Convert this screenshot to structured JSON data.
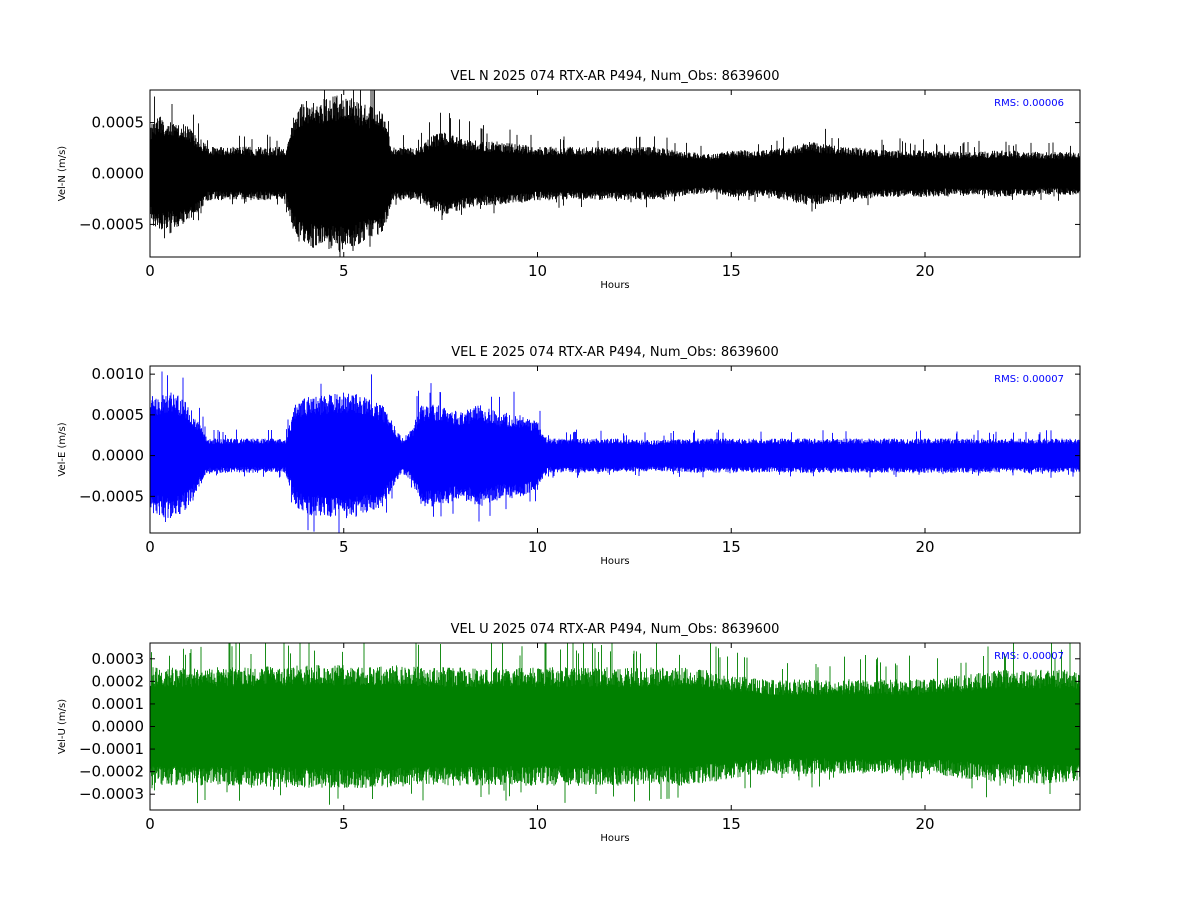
{
  "chart_data": [
    {
      "type": "line",
      "title": "VEL N 2025 074 RTX-AR  P494, Num_Obs: 8639600",
      "xlabel": "Hours",
      "ylabel": "Vel-N (m/s)",
      "xlim": [
        0,
        24
      ],
      "ylim": [
        -0.00082,
        0.00082
      ],
      "xticks": [
        0,
        5,
        10,
        15,
        20
      ],
      "yticks": [
        -0.0005,
        0.0,
        0.0005
      ],
      "ytick_labels": [
        "−0.0005",
        "0.0000",
        "0.0005"
      ],
      "color": "#000000",
      "rms_label": "RMS:  0.00006",
      "rms_color": "#0000ff",
      "grid": false,
      "envelope_hours": [
        0,
        0.25,
        0.5,
        0.75,
        1.0,
        1.5,
        2,
        2.5,
        3,
        3.5,
        3.75,
        4,
        4.5,
        5,
        5.5,
        6,
        6.25,
        6.5,
        7,
        7.25,
        7.5,
        8,
        8.5,
        9,
        9.5,
        10,
        11,
        12,
        13,
        14,
        14.5,
        15,
        16,
        17,
        18,
        19,
        20,
        21,
        22,
        23,
        24
      ],
      "envelope_max": [
        0.00045,
        0.00055,
        0.0005,
        0.0005,
        0.00045,
        0.00025,
        0.00025,
        0.00025,
        0.00025,
        0.00025,
        0.0006,
        0.0007,
        0.0007,
        0.00075,
        0.00065,
        0.0006,
        0.00025,
        0.00025,
        0.00025,
        0.00035,
        0.0004,
        0.00035,
        0.0003,
        0.0003,
        0.00028,
        0.00025,
        0.00025,
        0.00025,
        0.00025,
        0.0002,
        0.00018,
        0.00022,
        0.00022,
        0.0003,
        0.00025,
        0.00022,
        0.00022,
        0.0002,
        0.00022,
        0.0002,
        0.0002
      ],
      "rms_value": 6e-05
    },
    {
      "type": "line",
      "title": "VEL E 2025 074 RTX-AR  P494, Num_Obs: 8639600",
      "xlabel": "Hours",
      "ylabel": "Vel-E (m/s)",
      "xlim": [
        0,
        24
      ],
      "ylim": [
        -0.00095,
        0.0011
      ],
      "xticks": [
        0,
        5,
        10,
        15,
        20
      ],
      "yticks": [
        -0.0005,
        0.0,
        0.0005,
        0.001
      ],
      "ytick_labels": [
        "−0.0005",
        "0.0000",
        "0.0005",
        "0.0010"
      ],
      "color": "#0000ff",
      "rms_label": "RMS:  0.00007",
      "rms_color": "#0000ff",
      "grid": false,
      "envelope_hours": [
        0,
        0.25,
        0.5,
        0.75,
        1.0,
        1.5,
        2,
        2.5,
        3,
        3.5,
        3.75,
        4,
        4.5,
        5,
        5.5,
        6,
        6.5,
        6.75,
        7,
        7.5,
        8,
        8.5,
        9,
        9.5,
        10,
        10.25,
        11,
        12,
        13,
        14,
        15,
        16,
        17,
        18,
        19,
        20,
        21,
        22,
        23,
        24
      ],
      "envelope_max": [
        0.0007,
        0.0007,
        0.00075,
        0.0007,
        0.0006,
        0.0002,
        0.0002,
        0.0002,
        0.0002,
        0.0002,
        0.0006,
        0.0007,
        0.0007,
        0.00075,
        0.0007,
        0.0006,
        0.0002,
        0.0003,
        0.0006,
        0.0006,
        0.0005,
        0.0006,
        0.0005,
        0.0005,
        0.0004,
        0.0002,
        0.0002,
        0.0002,
        0.00018,
        0.0002,
        0.0002,
        0.0002,
        0.0002,
        0.0002,
        0.0002,
        0.0002,
        0.0002,
        0.0002,
        0.0002,
        0.0002
      ],
      "rms_value": 7e-05
    },
    {
      "type": "line",
      "title": "VEL U 2025 074 RTX-AR  P494, Num_Obs: 8639600",
      "xlabel": "Hours",
      "ylabel": "Vel-U (m/s)",
      "xlim": [
        0,
        24
      ],
      "ylim": [
        -0.00037,
        0.00037
      ],
      "xticks": [
        0,
        5,
        10,
        15,
        20
      ],
      "yticks": [
        -0.0003,
        -0.0002,
        -0.0001,
        0.0,
        0.0001,
        0.0002,
        0.0003
      ],
      "ytick_labels": [
        "−0.0003",
        "−0.0002",
        "−0.0001",
        "0.0000",
        "0.0001",
        "0.0002",
        "0.0003"
      ],
      "color": "#008000",
      "rms_label": "RMS:  0.00007",
      "rms_color": "#0000ff",
      "grid": false,
      "envelope_hours": [
        0,
        2,
        4,
        6,
        8,
        10,
        12,
        14,
        15,
        16,
        18,
        20,
        22,
        24
      ],
      "envelope_max": [
        0.00025,
        0.00025,
        0.00026,
        0.00026,
        0.00025,
        0.00025,
        0.00025,
        0.00025,
        0.00022,
        0.0002,
        0.0002,
        0.0002,
        0.00024,
        0.00024
      ],
      "rms_value": 7e-05
    }
  ]
}
